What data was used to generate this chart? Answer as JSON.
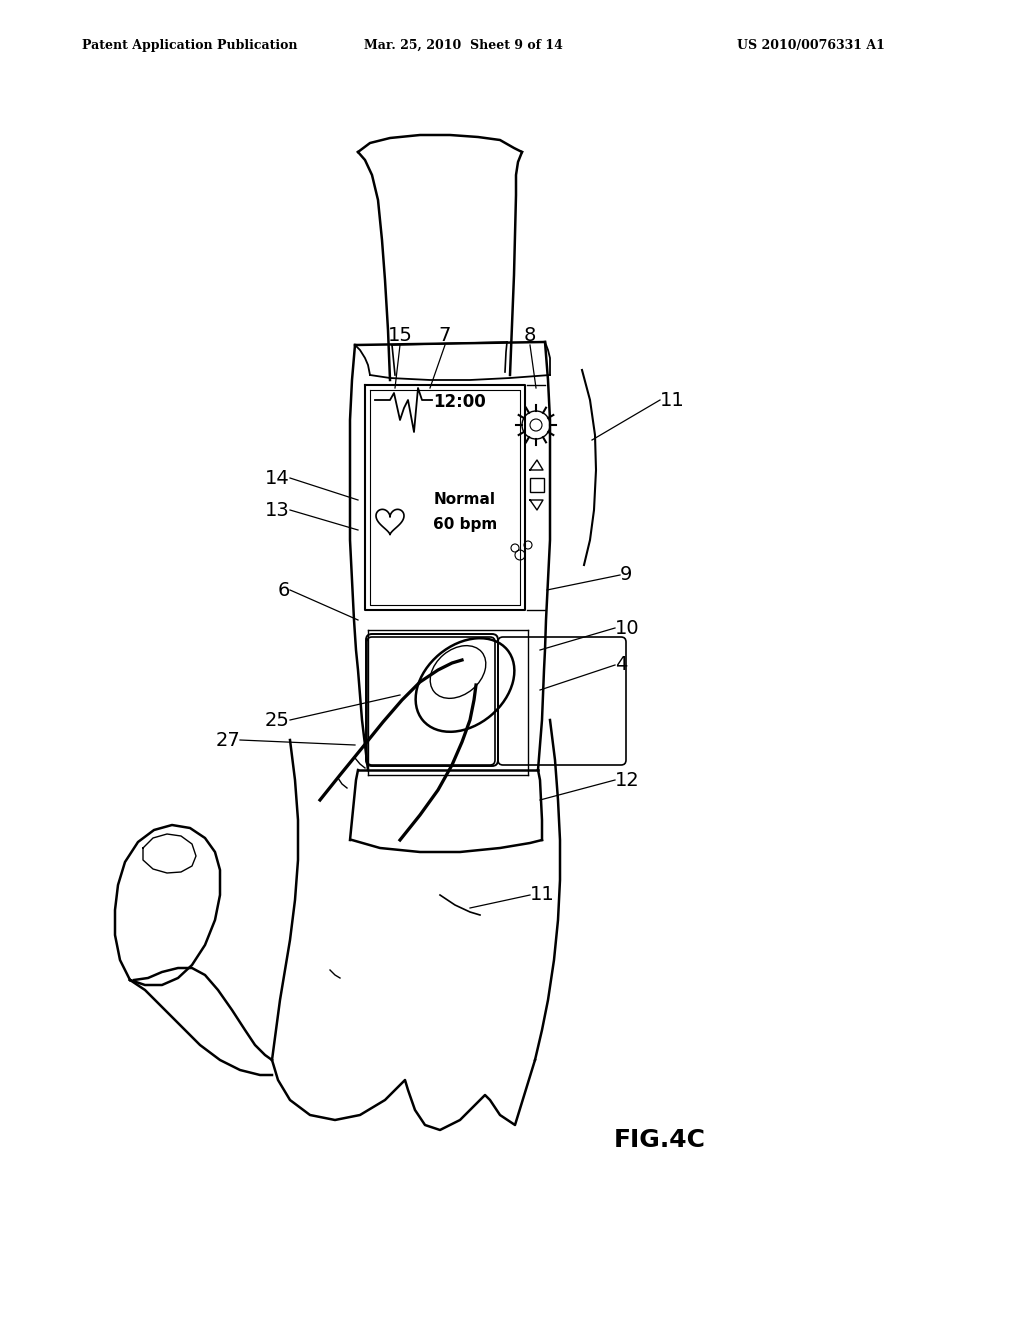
{
  "background_color": "#ffffff",
  "header_left": "Patent Application Publication",
  "header_center": "Mar. 25, 2010  Sheet 9 of 14",
  "header_right": "US 2010/0076331 A1",
  "figure_label": "FIG.4C"
}
